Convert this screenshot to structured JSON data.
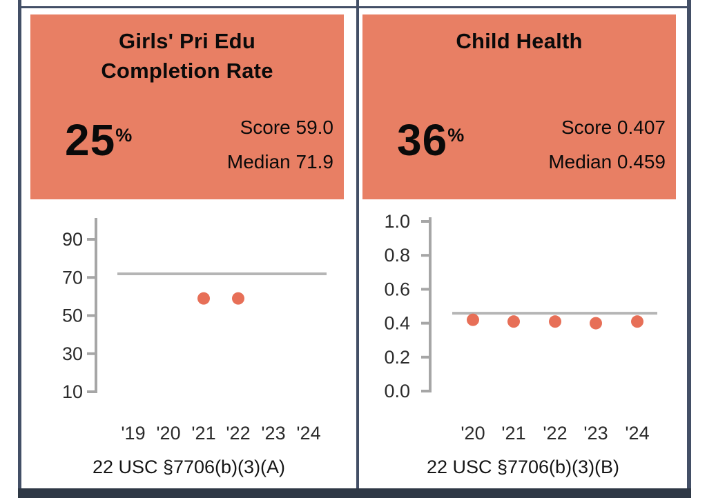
{
  "colors": {
    "header_bg": "#e87f64",
    "dot": "#e76f57",
    "median_line": "#b5b5b5",
    "axis": "#a6a6a6",
    "tick_text": "#2b2b2b",
    "title_text": "#0a0a0a",
    "border": "#434f66",
    "bottom_band": "#2e3845",
    "page_bg": "#ffffff"
  },
  "cards": [
    {
      "title_line1": "Girls' Pri Edu",
      "title_line2": "Completion Rate",
      "percent_value": "25",
      "percent_unit": "%",
      "score_text": "Score 59.0",
      "median_text": "Median 71.9",
      "citation": "22 USC §7706(b)(3)(A)"
    },
    {
      "title_line1": "Child Health",
      "title_line2": "",
      "percent_value": "36",
      "percent_unit": "%",
      "score_text": "Score 0.407",
      "median_text": "Median 0.459",
      "citation": "22 USC §7706(b)(3)(B)"
    }
  ],
  "chart_data": [
    {
      "type": "scatter",
      "title": "Girls' Pri Edu Completion Rate",
      "xlabel": "",
      "ylabel": "",
      "percent_score": 25,
      "score": 59.0,
      "median": 71.9,
      "ylim": [
        10,
        100
      ],
      "y_tick_values": [
        90,
        70,
        50,
        30,
        10
      ],
      "y_tick_labels": [
        "90",
        "70",
        "50",
        "30",
        "10"
      ],
      "x_tick_labels": [
        "'19",
        "'20",
        "'21",
        "'22",
        "'23",
        "'24"
      ],
      "x_years": [
        2019,
        2020,
        2021,
        2022,
        2023,
        2024
      ],
      "points": [
        {
          "x_label": "'21",
          "year": 2021,
          "y": 59.0
        },
        {
          "x_label": "'22",
          "year": 2022,
          "y": 59.0
        }
      ],
      "grid": false,
      "legend": false,
      "annotation": "22 USC §7706(b)(3)(A)"
    },
    {
      "type": "scatter",
      "title": "Child Health",
      "xlabel": "",
      "ylabel": "",
      "percent_score": 36,
      "score": 0.407,
      "median": 0.459,
      "ylim": [
        0.0,
        1.0
      ],
      "y_tick_values": [
        1.0,
        0.8,
        0.6,
        0.4,
        0.2,
        0.0
      ],
      "y_tick_labels": [
        "1.0",
        "0.8",
        "0.6",
        "0.4",
        "0.2",
        "0.0"
      ],
      "x_tick_labels": [
        "'20",
        "'21",
        "'22",
        "'23",
        "'24"
      ],
      "x_years": [
        2020,
        2021,
        2022,
        2023,
        2024
      ],
      "points": [
        {
          "x_label": "'20",
          "year": 2020,
          "y": 0.42
        },
        {
          "x_label": "'21",
          "year": 2021,
          "y": 0.41
        },
        {
          "x_label": "'22",
          "year": 2022,
          "y": 0.41
        },
        {
          "x_label": "'23",
          "year": 2023,
          "y": 0.4
        },
        {
          "x_label": "'24",
          "year": 2024,
          "y": 0.41
        }
      ],
      "grid": false,
      "legend": false,
      "annotation": "22 USC §7706(b)(3)(B)"
    }
  ]
}
